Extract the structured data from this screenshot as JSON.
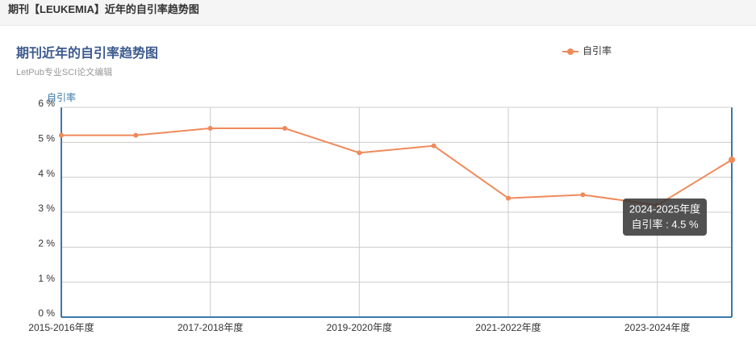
{
  "page_title": "期刊【LEUKEMIA】近年的自引率趋势图",
  "chart_data": {
    "type": "line",
    "title": "期刊近年的自引率趋势图",
    "subtitle": "LetPub专业SCI论文编辑",
    "y_label": "自引率",
    "categories": [
      "2015-2016年度",
      null,
      "2017-2018年度",
      null,
      "2019-2020年度",
      null,
      "2021-2022年度",
      null,
      "2023-2024年度",
      null
    ],
    "series": [
      {
        "name": "自引率",
        "color": "#ef8a5b",
        "values": [
          5.2,
          5.2,
          5.4,
          5.4,
          4.7,
          4.9,
          3.4,
          3.5,
          3.2,
          4.5
        ]
      }
    ],
    "ylim": [
      0,
      6
    ],
    "yticks": [
      {
        "value": 0,
        "label": "0 %"
      },
      {
        "value": 1,
        "label": "1 %"
      },
      {
        "value": 2,
        "label": "2 %"
      },
      {
        "value": 3,
        "label": "3 %"
      },
      {
        "value": 4,
        "label": "4 %"
      },
      {
        "value": 5,
        "label": "5 %"
      },
      {
        "value": 6,
        "label": "6 %"
      }
    ],
    "grid": true,
    "tooltip": {
      "title": "2024-2025年度",
      "label": "自引率 : 4.5 %"
    }
  }
}
